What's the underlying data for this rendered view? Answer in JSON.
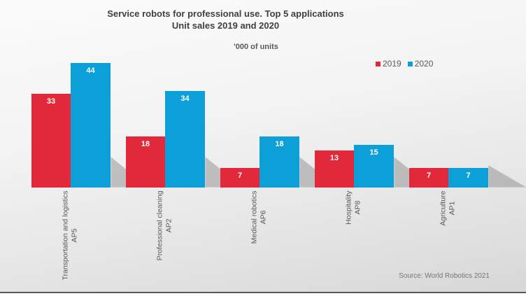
{
  "title": {
    "line1": "Service robots for professional use. Top 5 applications",
    "line2": "Unit sales 2019 and 2020"
  },
  "units_label": "'000 of units",
  "source": "Source: World Robotics 2021",
  "chart_data": {
    "type": "bar",
    "title": "Service robots for professional use. Top 5 applications",
    "subtitle": "Unit sales 2019 and 2020",
    "ylabel": "'000 of units",
    "categories": [
      "Transportation and logistics",
      "Professional cleaning",
      "Medical robotics",
      "Hospitality",
      "Agriculture"
    ],
    "category_codes": [
      "AP5",
      "AP2",
      "AP6",
      "AP8",
      "AP1"
    ],
    "series": [
      {
        "name": "2019",
        "color": "#e2293b",
        "values": [
          33,
          18,
          7,
          13,
          7
        ]
      },
      {
        "name": "2020",
        "color": "#0c9fd8",
        "values": [
          44,
          34,
          18,
          15,
          7
        ]
      }
    ],
    "ylim": [
      0,
      48
    ],
    "grid": false,
    "legend_position": "top-right",
    "data_labels": true,
    "axis_visible": false
  }
}
